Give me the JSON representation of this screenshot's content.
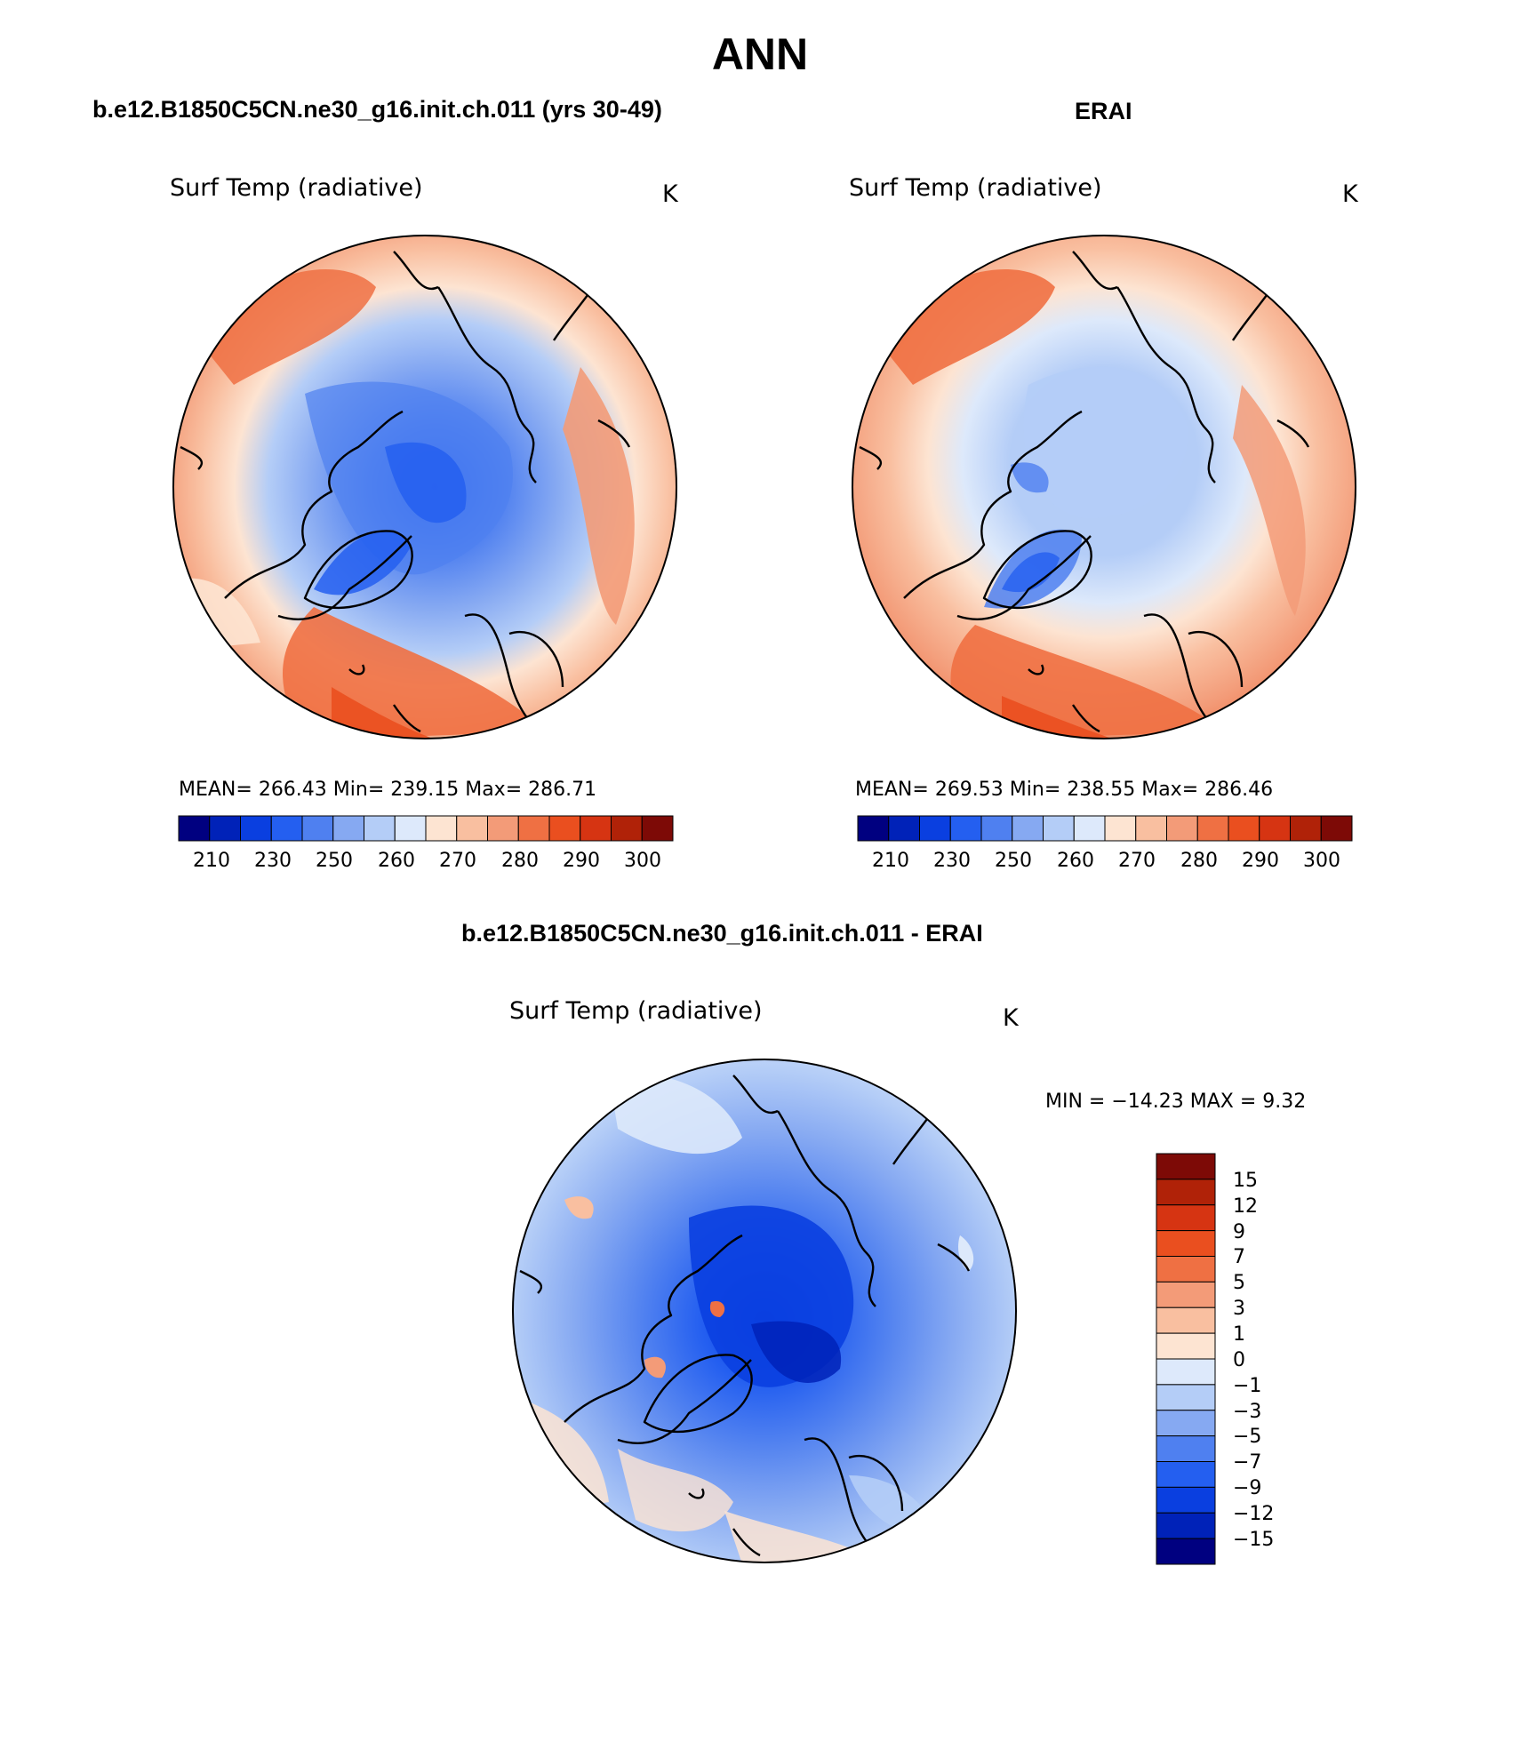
{
  "main_title": "ANN",
  "panels": [
    {
      "title": "b.e12.B1850C5CN.ne30_g16.init.ch.011 (yrs 30-49)",
      "variable": "Surf Temp (radiative)",
      "units": "K",
      "stats_text": "MEAN= 266.43   Min= 239.15   Max= 286.71",
      "colorbar_labels": [
        "210",
        "230",
        "250",
        "260",
        "270",
        "280",
        "290",
        "300"
      ]
    },
    {
      "title": "ERAI",
      "variable": "Surf Temp (radiative)",
      "units": "K",
      "stats_text": "MEAN= 269.53   Min= 238.55   Max= 286.46",
      "colorbar_labels": [
        "210",
        "230",
        "250",
        "260",
        "270",
        "280",
        "290",
        "300"
      ]
    },
    {
      "title": "b.e12.B1850C5CN.ne30_g16.init.ch.011 - ERAI",
      "variable": "Surf Temp (radiative)",
      "units": "K",
      "stats_text": "MIN = −14.23 MAX =    9.32",
      "colorbar_labels": [
        "15",
        "12",
        "9",
        "7",
        "5",
        "3",
        "1",
        "0",
        "−1",
        "−3",
        "−5",
        "−7",
        "−9",
        "−12",
        "−15"
      ]
    }
  ],
  "colors": {
    "abs_scale": [
      "#000080",
      "#0022b8",
      "#0a3fe0",
      "#245ff0",
      "#4f80f0",
      "#86a9f2",
      "#b4cdf7",
      "#dde9fb",
      "#fde4d2",
      "#f9bfa0",
      "#f39b78",
      "#ef7043",
      "#ea4f1f",
      "#d63412",
      "#b02208",
      "#7d0a06"
    ],
    "diff_scale": [
      "#7d0a06",
      "#b02208",
      "#d63412",
      "#ea4f1f",
      "#ef7043",
      "#f39b78",
      "#f9bfa0",
      "#fde4d2",
      "#dde9fb",
      "#b4cdf7",
      "#86a9f2",
      "#4f80f0",
      "#245ff0",
      "#0a3fe0",
      "#0022b8",
      "#000080"
    ]
  }
}
